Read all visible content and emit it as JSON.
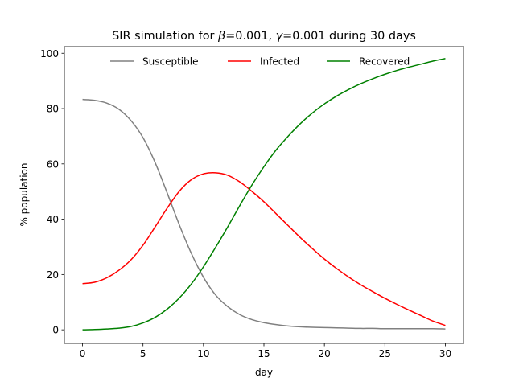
{
  "chart_data": {
    "type": "line",
    "title": "SIR simulation for β=0.001, γ=0.001 during 30 days",
    "title_parts": {
      "lead": "SIR simulation for ",
      "beta_symbol": "β",
      "beta_value": "=0.001, ",
      "gamma_symbol": "γ",
      "gamma_value": "=0.001 during 30 days"
    },
    "xlabel": "day",
    "ylabel": "% population",
    "xlim": [
      -1.5,
      31.5
    ],
    "ylim": [
      -4.9,
      102.4
    ],
    "xticks": [
      0,
      5,
      10,
      15,
      20,
      25,
      30
    ],
    "yticks": [
      0,
      20,
      40,
      60,
      80,
      100
    ],
    "grid": false,
    "legend_position": "top-center",
    "x": [
      0,
      1,
      2,
      3,
      4,
      5,
      6,
      7,
      8,
      9,
      10,
      11,
      12,
      13,
      14,
      15,
      16,
      17,
      18,
      19,
      20,
      21,
      22,
      23,
      24,
      25,
      26,
      27,
      28,
      29,
      30
    ],
    "series": [
      {
        "name": "Susceptible",
        "color": "#808080",
        "values": [
          83.3,
          83.0,
          82.0,
          79.8,
          75.7,
          69.5,
          60.5,
          49.5,
          38.0,
          27.6,
          19.0,
          12.6,
          8.4,
          5.5,
          3.7,
          2.6,
          1.9,
          1.4,
          1.1,
          0.9,
          0.8,
          0.7,
          0.6,
          0.5,
          0.5,
          0.4,
          0.4,
          0.4,
          0.4,
          0.4,
          0.3
        ]
      },
      {
        "name": "Infected",
        "color": "#ff0000",
        "values": [
          16.7,
          17.2,
          18.8,
          21.5,
          25.3,
          30.6,
          37.2,
          44.0,
          50.1,
          54.3,
          56.4,
          56.8,
          55.9,
          53.5,
          50.1,
          46.3,
          42.0,
          37.7,
          33.4,
          29.4,
          25.6,
          22.2,
          19.1,
          16.3,
          13.8,
          11.4,
          9.2,
          7.1,
          5.1,
          3.1,
          1.6
        ]
      },
      {
        "name": "Recovered",
        "color": "#008000",
        "values": [
          0.0,
          0.1,
          0.3,
          0.6,
          1.2,
          2.5,
          4.5,
          7.5,
          11.5,
          16.6,
          22.8,
          29.8,
          37.2,
          44.9,
          52.3,
          59.0,
          65.0,
          70.0,
          74.5,
          78.4,
          81.7,
          84.5,
          86.9,
          89.0,
          90.8,
          92.4,
          93.8,
          95.0,
          96.1,
          97.2,
          98.1
        ]
      }
    ]
  }
}
